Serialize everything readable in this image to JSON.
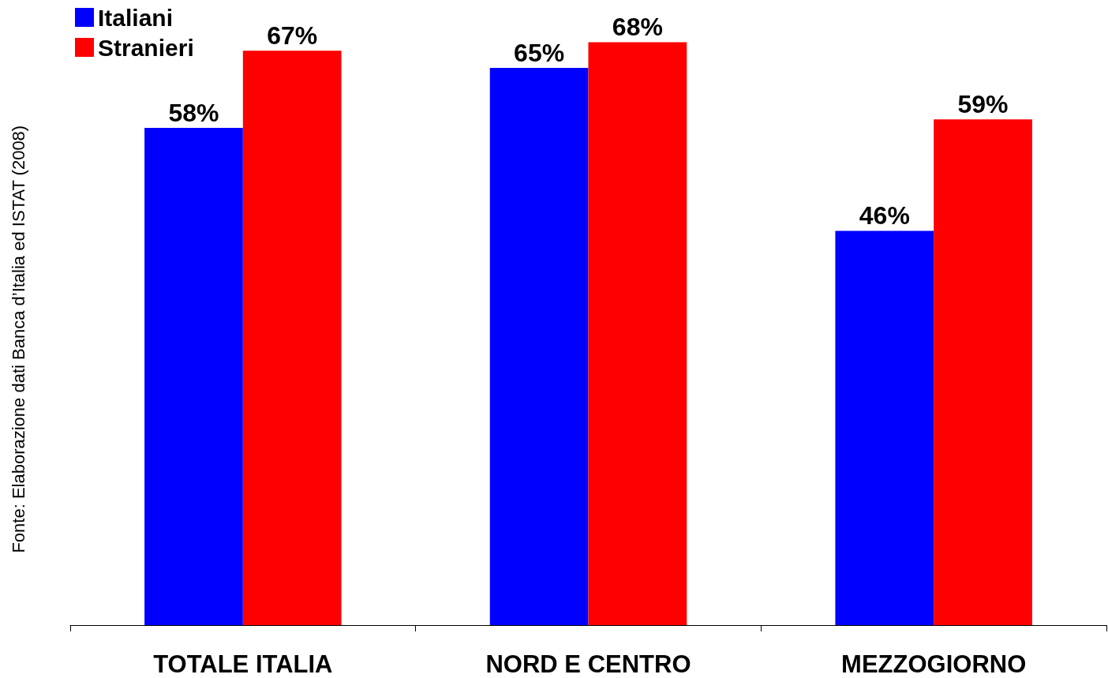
{
  "chart_data": {
    "type": "bar",
    "categories": [
      "TOTALE ITALIA",
      "NORD E CENTRO",
      "MEZZOGIORNO"
    ],
    "series": [
      {
        "name": "Italiani",
        "color": "#0000ff",
        "values": [
          58,
          65,
          46
        ],
        "value_labels": [
          "58%",
          "65%",
          "46%"
        ]
      },
      {
        "name": "Stranieri",
        "color": "#ff0000",
        "values": [
          67,
          68,
          59
        ],
        "value_labels": [
          "67%",
          "68%",
          "59%"
        ]
      }
    ],
    "ylim": [
      0,
      72
    ],
    "tick_labels": "x",
    "grid": false,
    "legend": "top left",
    "annotations": [
      "Fonte: Elaborazione dati Banca d’Italia ed ISTAT (2008)"
    ]
  }
}
